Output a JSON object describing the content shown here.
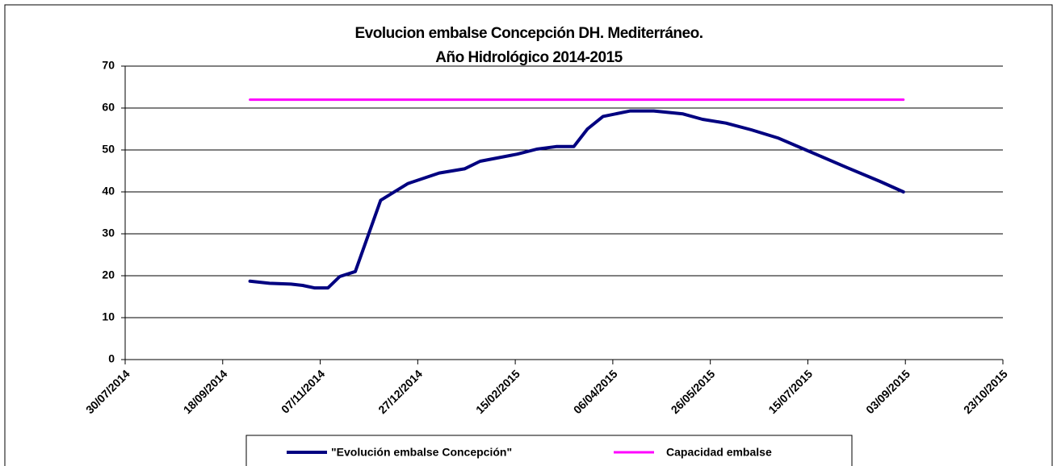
{
  "chart_data": {
    "type": "line",
    "title": "Evolucion embalse Concepción DH. Mediterráneo.",
    "subtitle": "Año Hidrológico 2014-2015",
    "series": [
      {
        "name": "\"Evolución embalse Concepción\"",
        "color": "#000080",
        "x": [
          "02/10/2014",
          "12/10/2014",
          "23/10/2014",
          "29/10/2014",
          "04/11/2014",
          "11/11/2014",
          "17/11/2014",
          "25/11/2014",
          "08/12/2014",
          "22/12/2014",
          "07/01/2015",
          "20/01/2015",
          "28/01/2015",
          "16/02/2015",
          "26/02/2015",
          "08/03/2015",
          "17/03/2015",
          "24/03/2015",
          "01/04/2015",
          "15/04/2015",
          "27/04/2015",
          "12/05/2015",
          "22/05/2015",
          "03/06/2015",
          "16/06/2015",
          "30/06/2015",
          "15/07/2015",
          "04/08/2015",
          "21/08/2015",
          "02/09/2015"
        ],
        "values": [
          18.7,
          18.2,
          18,
          17.7,
          17.1,
          17.1,
          19.8,
          21,
          38,
          42,
          44.5,
          45.5,
          47.3,
          49,
          50.2,
          50.8,
          50.8,
          55,
          58,
          59.3,
          59.3,
          58.6,
          57.3,
          56.4,
          54.8,
          52.8,
          49.8,
          45.8,
          42.5,
          40
        ]
      },
      {
        "name": "Capacidad embalse",
        "color": "#ff00ff",
        "x": [
          "02/10/2014",
          "02/09/2015"
        ],
        "values": [
          62,
          62
        ]
      }
    ],
    "xlim": [
      "30/07/2014",
      "23/10/2015"
    ],
    "xticks": [
      "30/07/2014",
      "18/09/2014",
      "07/11/2014",
      "27/12/2014",
      "15/02/2015",
      "06/04/2015",
      "26/05/2015",
      "15/07/2015",
      "03/09/2015",
      "23/10/2015"
    ],
    "ylim": [
      0,
      70
    ],
    "yticks": [
      0,
      10,
      20,
      30,
      40,
      50,
      60,
      70
    ],
    "grid": true
  }
}
